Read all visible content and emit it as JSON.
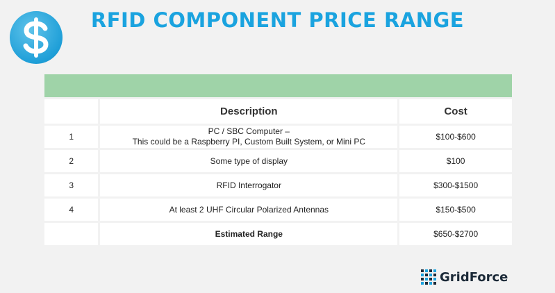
{
  "header": {
    "title": "RFID COMPONENT PRICE RANGE",
    "badge_icon": "dollar-icon"
  },
  "table": {
    "columns": [
      "",
      "Description",
      "Cost"
    ],
    "rows": [
      {
        "num": "1",
        "desc_line1": "PC / SBC Computer –",
        "desc_line2": "This could be a Raspberry PI, Custom Built System, or Mini PC",
        "cost": "$100-$600"
      },
      {
        "num": "2",
        "desc": "Some type of display",
        "cost": "$100"
      },
      {
        "num": "3",
        "desc": "RFID Interrogator",
        "cost": "$300-$1500"
      },
      {
        "num": "4",
        "desc": "At least 2 UHF Circular Polarized Antennas",
        "cost": "$150-$500"
      }
    ],
    "total": {
      "label": "Estimated Range",
      "cost": "$650-$2700"
    }
  },
  "brand": {
    "name": "GridForce"
  },
  "colors": {
    "accent": "#1aa3df",
    "header_band": "#9fd3a8",
    "background": "#f2f2f2"
  }
}
